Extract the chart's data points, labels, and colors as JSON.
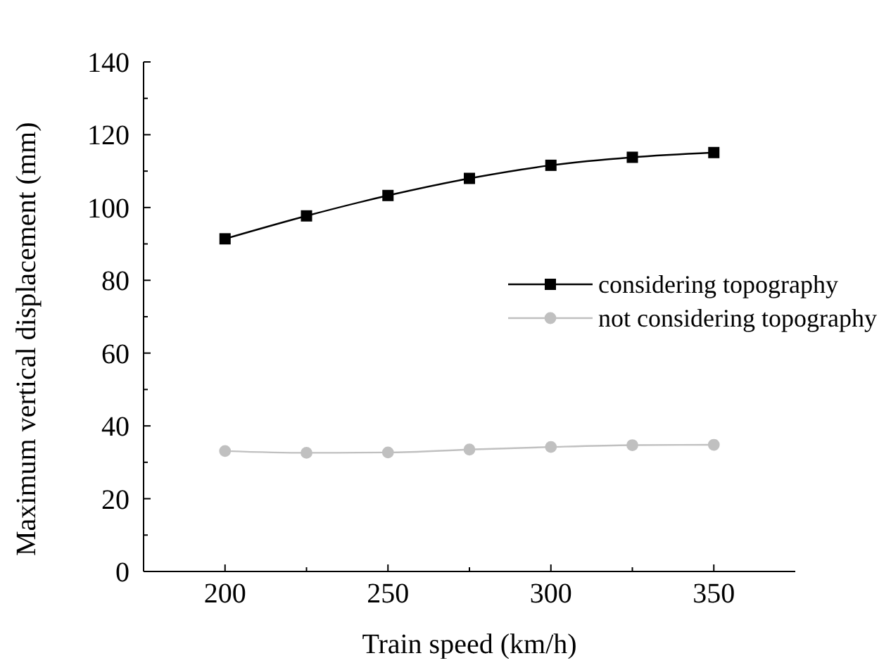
{
  "chart_data": {
    "type": "line",
    "xlabel": "Train speed (km/h)",
    "ylabel": "Maximum vertical displacement (mm)",
    "x": [
      200,
      225,
      250,
      275,
      300,
      325,
      350
    ],
    "series": [
      {
        "name": "considering topography",
        "color": "#000000",
        "marker": "square",
        "values": [
          91.4,
          97.7,
          103.3,
          108,
          111.6,
          113.8,
          115.1
        ]
      },
      {
        "name": "not considering topography",
        "color": "#c0c0c0",
        "marker": "circle",
        "values": [
          33.1,
          32.6,
          32.7,
          33.5,
          34.2,
          34.7,
          34.8
        ]
      }
    ],
    "xlim": [
      175,
      375
    ],
    "xticks": [
      200,
      {
        "value": 225,
        "label": null
      },
      250,
      {
        "value": 275,
        "label": null
      },
      300,
      {
        "value": 325,
        "label": null
      },
      350
    ],
    "ylim": [
      0,
      140
    ],
    "yticks": [
      0,
      {
        "value": 10,
        "label": null
      },
      20,
      {
        "value": 30,
        "label": null
      },
      40,
      {
        "value": 50,
        "label": null
      },
      60,
      {
        "value": 70,
        "label": null
      },
      80,
      {
        "value": 90,
        "label": null
      },
      100,
      {
        "value": 110,
        "label": null
      },
      120,
      {
        "value": 130,
        "label": null
      },
      140
    ],
    "grid": false,
    "legend": "right",
    "line_style": "solid"
  }
}
